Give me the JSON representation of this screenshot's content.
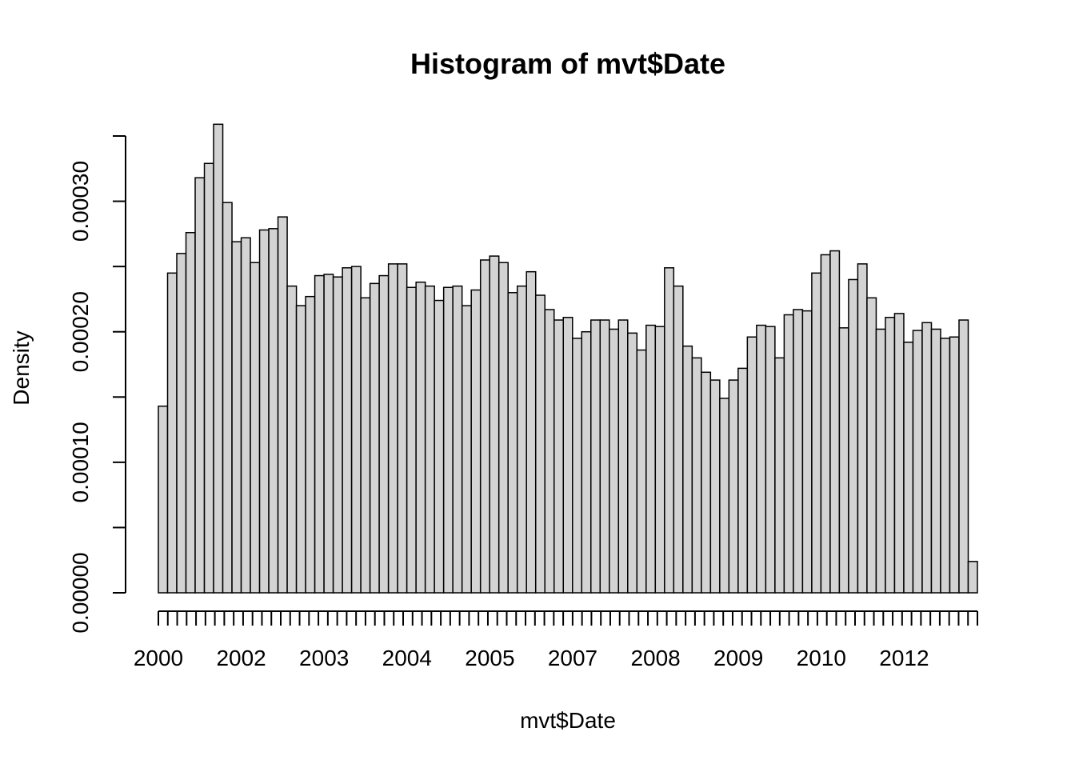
{
  "chart_data": {
    "type": "bar",
    "title": "Histogram of mvt$Date",
    "xlabel": "mvt$Date",
    "ylabel": "Density",
    "ylim": [
      0,
      0.00035
    ],
    "y_ticks": [
      "0.00000",
      "0.00010",
      "0.00020",
      "0.00030"
    ],
    "x_tick_labels": [
      "2000",
      "2002",
      "2003",
      "2004",
      "2005",
      "2007",
      "2008",
      "2009",
      "2010",
      "2012"
    ],
    "x_minor_tick_count": 88,
    "bar_fill": "#d3d3d3",
    "grid": false,
    "values": [
      0.000143,
      0.000245,
      0.00026,
      0.000276,
      0.000318,
      0.000329,
      0.000359,
      0.000299,
      0.000269,
      0.000272,
      0.000253,
      0.000278,
      0.000279,
      0.000288,
      0.000235,
      0.00022,
      0.000227,
      0.000243,
      0.000244,
      0.000242,
      0.000249,
      0.00025,
      0.000226,
      0.000237,
      0.000243,
      0.000252,
      0.000252,
      0.000234,
      0.000238,
      0.000235,
      0.000224,
      0.000234,
      0.000235,
      0.00022,
      0.000232,
      0.000255,
      0.000258,
      0.000253,
      0.00023,
      0.000235,
      0.000246,
      0.000228,
      0.000217,
      0.000209,
      0.000211,
      0.000195,
      0.0002,
      0.000209,
      0.000209,
      0.000202,
      0.000209,
      0.000199,
      0.000186,
      0.000205,
      0.000204,
      0.000249,
      0.000235,
      0.000189,
      0.00018,
      0.000169,
      0.000163,
      0.000149,
      0.000163,
      0.000172,
      0.000196,
      0.000205,
      0.000204,
      0.00018,
      0.000213,
      0.000217,
      0.000216,
      0.000245,
      0.000259,
      0.000262,
      0.000203,
      0.00024,
      0.000252,
      0.000226,
      0.000202,
      0.000211,
      0.000214,
      0.000192,
      0.000201,
      0.000207,
      0.000202,
      0.000195,
      0.000196,
      0.000209,
      2.4e-05
    ]
  }
}
